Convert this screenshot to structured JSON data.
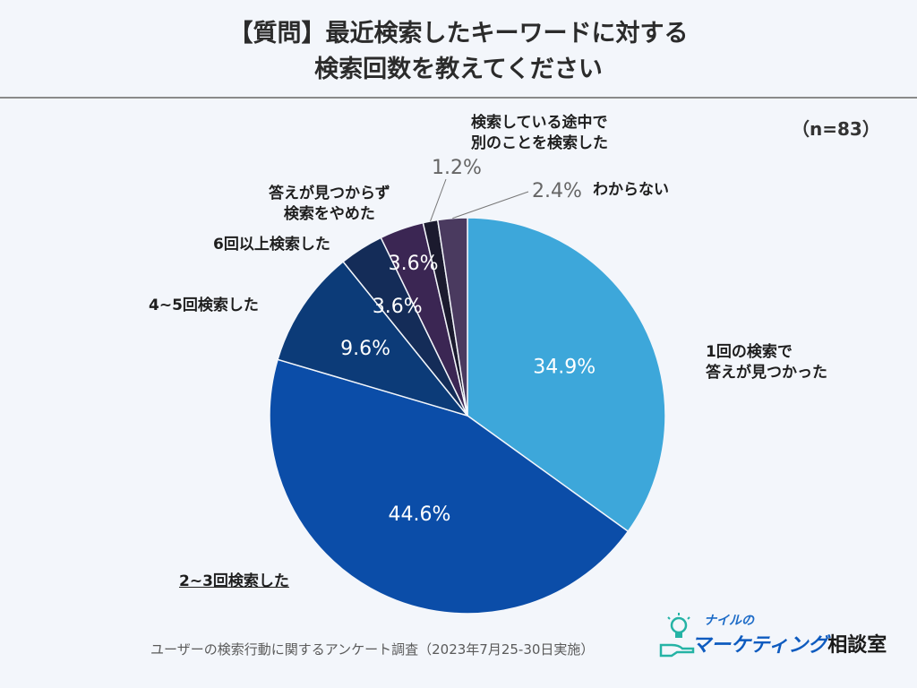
{
  "title_line1": "【質問】最近検索したキーワードに対する",
  "title_line2": "検索回数を教えてください",
  "sample_size": "（n=83）",
  "footer_note": "ユーザーの検索行動に関するアンケート調査（2023年7月25-30日実施）",
  "logo": {
    "small": "ナイルの",
    "main": "マーケティング",
    "suffix": "相談室"
  },
  "chart_data": {
    "type": "pie",
    "title": "【質問】最近検索したキーワードに対する検索回数を教えてください",
    "unit": "%",
    "start": "top, clockwise",
    "slices": [
      {
        "label": "1回の検索で答えが見つかった",
        "label_lines": [
          "1回の検索で",
          "答えが見つかった"
        ],
        "value": 34.9,
        "value_text": "34.9%",
        "color": "#3da7da"
      },
      {
        "label": "2~3回検索した",
        "label_lines": [
          "2~3回検索した"
        ],
        "value": 44.6,
        "value_text": "44.6%",
        "color": "#0b4da8"
      },
      {
        "label": "4~5回検索した",
        "label_lines": [
          "4~5回検索した"
        ],
        "value": 9.6,
        "value_text": "9.6%",
        "color": "#0c3b78"
      },
      {
        "label": "6回以上検索した",
        "label_lines": [
          "6回以上検索した"
        ],
        "value": 3.6,
        "value_text": "3.6%",
        "color": "#142c58"
      },
      {
        "label": "答えが見つからず検索をやめた",
        "label_lines": [
          "答えが見つからず",
          "検索をやめた"
        ],
        "value": 3.6,
        "value_text": "3.6%",
        "color": "#3b2653"
      },
      {
        "label": "検索している途中で別のことを検索した",
        "label_lines": [
          "検索している途中で",
          "別のことを検索した"
        ],
        "value": 1.2,
        "value_text": "1.2%",
        "color": "#1b1a2e"
      },
      {
        "label": "わからない",
        "label_lines": [
          "わからない"
        ],
        "value": 2.4,
        "value_text": "2.4%",
        "color": "#4a3a5f"
      }
    ]
  }
}
